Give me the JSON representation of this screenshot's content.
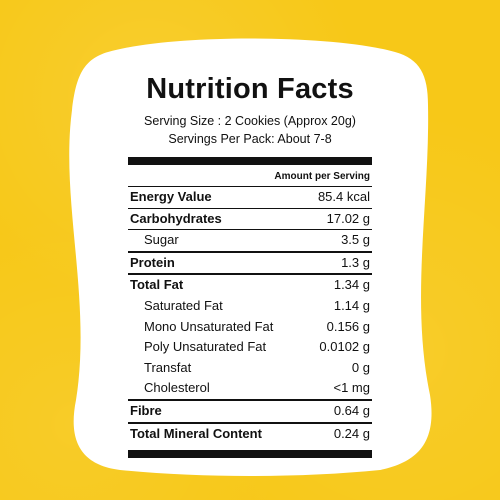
{
  "label": {
    "title": "Nutrition Facts",
    "serving_size": "Serving Size : 2 Cookies (Approx 20g)",
    "servings_per_pack": "Servings Per Pack: About 7-8",
    "amount_header": "Amount per Serving",
    "rows": [
      {
        "label": "Energy Value",
        "value": "85.4 kcal"
      },
      {
        "label": "Carbohydrates",
        "value": "17.02 g"
      },
      {
        "label": "Sugar",
        "value": "3.5 g"
      },
      {
        "label": "Protein",
        "value": "1.3 g"
      },
      {
        "label": "Total Fat",
        "value": "1.34 g"
      },
      {
        "label": "Saturated Fat",
        "value": "1.14 g"
      },
      {
        "label": "Mono Unsaturated Fat",
        "value": "0.156 g"
      },
      {
        "label": "Poly Unsaturated Fat",
        "value": "0.0102 g"
      },
      {
        "label": "Transfat",
        "value": "0 g"
      },
      {
        "label": "Cholesterol",
        "value": "<1 mg"
      },
      {
        "label": "Fibre",
        "value": "0.64 g"
      },
      {
        "label": "Total Mineral Content",
        "value": "0.24 g"
      }
    ]
  },
  "colors": {
    "background": "#f7c818",
    "card": "#ffffff",
    "text": "#111111"
  }
}
